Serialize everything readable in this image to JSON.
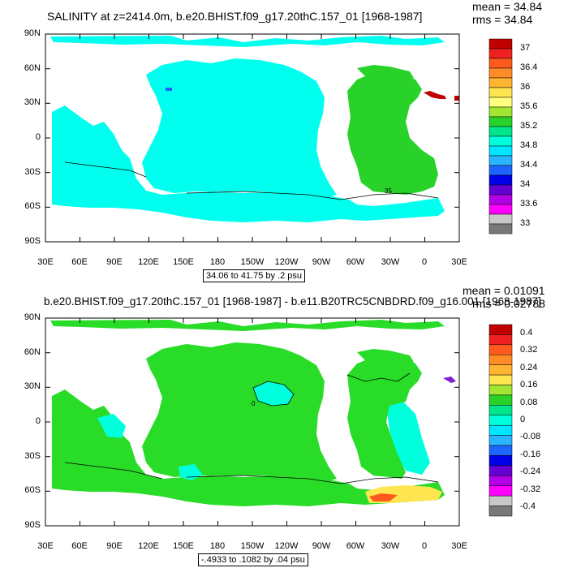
{
  "top": {
    "title": "SALINITY at z=2414.0m, b.e20.BHIST.f09_g17.20thC.157_01 [1968-1987]",
    "mean": "mean = 34.84",
    "rms": "rms = 34.84",
    "range": "34.06 to 41.75 by .2 psu",
    "contour_label": "35",
    "colorbar_labels": [
      "37",
      "36.4",
      "36",
      "35.6",
      "35.2",
      "34.8",
      "34.4",
      "34",
      "33.6",
      "33"
    ],
    "colorbar_colors": [
      "#c00000",
      "#ee2020",
      "#ff5a1e",
      "#ff8c28",
      "#ffb432",
      "#ffe650",
      "#ffff80",
      "#a0e632",
      "#28d228",
      "#00e68c",
      "#00ffdc",
      "#00e6ff",
      "#28b4ff",
      "#1e64ff",
      "#0000e6",
      "#6400d2",
      "#b400e6",
      "#ff00ff",
      "#c8c8c8",
      "#787878"
    ]
  },
  "bottom": {
    "title": "b.e20.BHIST.f09_g17.20thC.157_01 [1968-1987] - b.e11.B20TRC5CNBDRD.f09_g16.001 [1968-1987]",
    "mean": "mean = 0.01091",
    "rms": "rms = 0.02788",
    "range": "-.4933 to .1082 by .04 psu",
    "contour_label": "0",
    "colorbar_labels": [
      "0.4",
      "0.32",
      "0.24",
      "0.16",
      "0.08",
      "0",
      "-0.08",
      "-0.16",
      "-0.24",
      "-0.32",
      "-0.4"
    ],
    "colorbar_colors": [
      "#c00000",
      "#ee2020",
      "#ff5a1e",
      "#ff8c28",
      "#ffb432",
      "#ffe650",
      "#a0e632",
      "#28d228",
      "#00e68c",
      "#00ffdc",
      "#00e6ff",
      "#28b4ff",
      "#1e64ff",
      "#0000e6",
      "#6400d2",
      "#b400e6",
      "#ff00ff",
      "#c8c8c8",
      "#787878"
    ]
  },
  "axes": {
    "lat_labels": [
      "90N",
      "60N",
      "30N",
      "0",
      "30S",
      "60S",
      "90S"
    ],
    "lon_labels": [
      "30E",
      "60E",
      "90E",
      "120E",
      "150E",
      "180",
      "150W",
      "120W",
      "90W",
      "60W",
      "30W",
      "0",
      "30E"
    ]
  },
  "colors": {
    "ocean_top": "#00ffee",
    "ocean_bottom": "#28dc28",
    "cyan_bottom": "#00ffdc",
    "red": "#c00000",
    "purple": "#8020d0",
    "blue": "#1e64ff",
    "lightblue": "#7ef0ff"
  }
}
